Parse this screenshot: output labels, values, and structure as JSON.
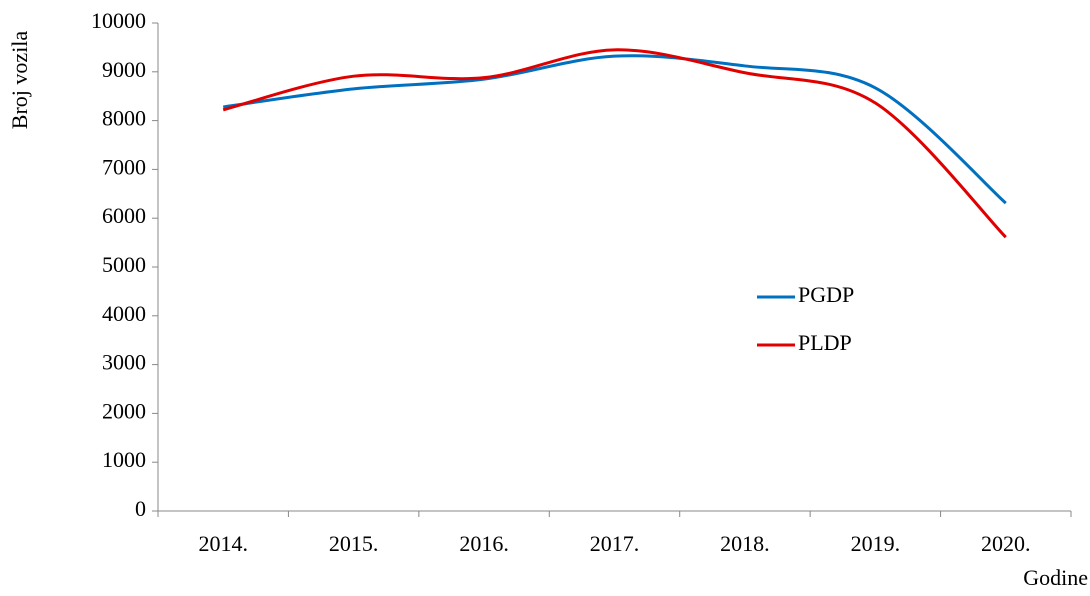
{
  "chart_data": {
    "type": "line",
    "categories": [
      "2014.",
      "2015.",
      "2016.",
      "2017.",
      "2018.",
      "2019.",
      "2020."
    ],
    "series": [
      {
        "name": "PGDP",
        "color": "#0070c0",
        "values": [
          8280,
          8650,
          8850,
          9320,
          9120,
          8670,
          6310
        ]
      },
      {
        "name": "PLDP",
        "color": "#e00000",
        "values": [
          8220,
          8910,
          8880,
          9450,
          8980,
          8360,
          5610
        ]
      }
    ],
    "ylim": [
      0,
      10000
    ],
    "yticks": [
      0,
      1000,
      2000,
      3000,
      4000,
      5000,
      6000,
      7000,
      8000,
      9000,
      10000
    ],
    "ylabel": "Broj vozila",
    "xlabel": "Godine",
    "grid": false,
    "legend": "right"
  }
}
